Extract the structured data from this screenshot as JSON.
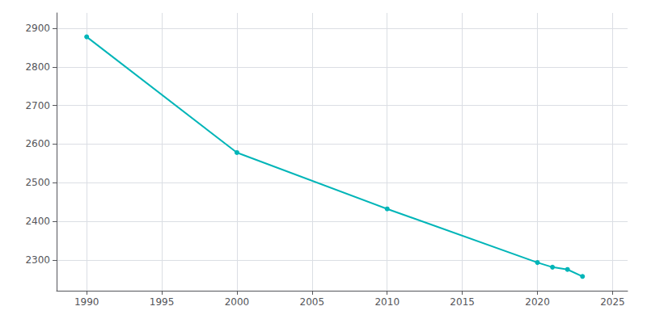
{
  "chart_data": {
    "type": "line",
    "x": [
      1990,
      2000,
      2010,
      2020,
      2021,
      2022,
      2023
    ],
    "values": [
      2878,
      2578,
      2432,
      2293,
      2281,
      2275,
      2257
    ],
    "color": "#00b5b8",
    "marker": "circle",
    "xlim": [
      1988,
      2026
    ],
    "ylim": [
      2220,
      2940
    ],
    "xticks": [
      1990,
      1995,
      2000,
      2005,
      2010,
      2015,
      2020,
      2025
    ],
    "yticks": [
      2300,
      2400,
      2500,
      2600,
      2700,
      2800,
      2900
    ],
    "grid": true
  }
}
